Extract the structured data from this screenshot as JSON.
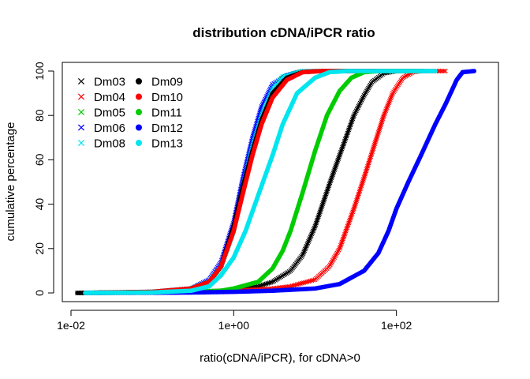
{
  "chart_data": {
    "type": "scatter",
    "title": "distribution cDNA/iPCR ratio",
    "xlabel": "ratio(cDNA/iPCR), for cDNA>0",
    "ylabel": "cumulative percentage",
    "x_scale": "log10",
    "xlim": [
      0.01,
      1200
    ],
    "ylim": [
      0,
      100
    ],
    "x_ticks": [
      {
        "value": 0.01,
        "label": "1e-02"
      },
      {
        "value": 1,
        "label": "1e+00"
      },
      {
        "value": 100,
        "label": "1e+02"
      }
    ],
    "y_ticks": [
      0,
      20,
      40,
      60,
      80,
      100
    ],
    "grid": false,
    "legend_position": "top-left",
    "series": [
      {
        "name": "Dm03",
        "marker": "x",
        "color": "#000000",
        "points": [
          [
            0.012,
            0
          ],
          [
            0.1,
            0.2
          ],
          [
            0.3,
            0.5
          ],
          [
            0.7,
            1
          ],
          [
            1.0,
            1.5
          ],
          [
            2.0,
            3
          ],
          [
            3.0,
            5
          ],
          [
            5.0,
            10
          ],
          [
            7.0,
            17
          ],
          [
            10,
            30
          ],
          [
            15,
            49
          ],
          [
            20,
            62
          ],
          [
            30,
            80
          ],
          [
            40,
            89
          ],
          [
            50,
            95
          ],
          [
            70,
            99
          ],
          [
            100,
            100
          ],
          [
            180,
            100
          ]
        ]
      },
      {
        "name": "Dm04",
        "marker": "x",
        "color": "#ff0000",
        "points": [
          [
            0.015,
            0
          ],
          [
            0.1,
            0.1
          ],
          [
            0.3,
            0.3
          ],
          [
            1.0,
            1
          ],
          [
            3.0,
            2
          ],
          [
            5.0,
            3
          ],
          [
            10,
            6
          ],
          [
            15,
            12
          ],
          [
            20,
            20
          ],
          [
            30,
            38
          ],
          [
            40,
            52
          ],
          [
            55,
            68
          ],
          [
            70,
            80
          ],
          [
            90,
            90
          ],
          [
            120,
            97
          ],
          [
            160,
            99.5
          ],
          [
            200,
            100
          ],
          [
            400,
            100
          ]
        ]
      },
      {
        "name": "Dm05",
        "marker": "x",
        "color": "#00cc00",
        "points": [
          [
            0.015,
            0
          ],
          [
            0.1,
            0.5
          ],
          [
            0.3,
            2
          ],
          [
            0.5,
            5
          ],
          [
            0.7,
            12
          ],
          [
            1.0,
            28
          ],
          [
            1.3,
            48
          ],
          [
            1.7,
            65
          ],
          [
            2.2,
            80
          ],
          [
            3.0,
            92
          ],
          [
            4.0,
            97
          ],
          [
            6.0,
            99.5
          ],
          [
            10,
            100
          ],
          [
            200,
            100
          ]
        ]
      },
      {
        "name": "Dm06",
        "marker": "x",
        "color": "#0000ff",
        "points": [
          [
            0.015,
            0
          ],
          [
            0.1,
            0.5
          ],
          [
            0.3,
            2
          ],
          [
            0.5,
            6
          ],
          [
            0.7,
            14
          ],
          [
            1.0,
            32
          ],
          [
            1.3,
            52
          ],
          [
            1.7,
            70
          ],
          [
            2.2,
            84
          ],
          [
            3.0,
            94
          ],
          [
            4.5,
            98
          ],
          [
            7,
            100
          ],
          [
            200,
            100
          ]
        ]
      },
      {
        "name": "Dm08",
        "marker": "x",
        "color": "#00e5ee",
        "points": [
          [
            0.015,
            0
          ],
          [
            0.1,
            0.5
          ],
          [
            0.3,
            2
          ],
          [
            0.5,
            5
          ],
          [
            0.7,
            12
          ],
          [
            1.0,
            28
          ],
          [
            1.3,
            48
          ],
          [
            1.7,
            66
          ],
          [
            2.2,
            80
          ],
          [
            3.0,
            92
          ],
          [
            4.0,
            97.5
          ],
          [
            7,
            100
          ],
          [
            250,
            100
          ]
        ]
      },
      {
        "name": "Dm09",
        "marker": "dot",
        "color": "#000000",
        "points": [
          [
            0.012,
            0
          ],
          [
            0.1,
            0.5
          ],
          [
            0.3,
            2
          ],
          [
            0.5,
            5
          ],
          [
            0.7,
            12
          ],
          [
            1.0,
            30
          ],
          [
            1.3,
            48
          ],
          [
            1.7,
            64
          ],
          [
            2.2,
            78
          ],
          [
            3.0,
            90
          ],
          [
            4.5,
            97
          ],
          [
            7,
            99.5
          ],
          [
            12,
            100
          ],
          [
            200,
            100
          ]
        ]
      },
      {
        "name": "Dm10",
        "marker": "dot",
        "color": "#ff0000",
        "points": [
          [
            0.015,
            0
          ],
          [
            0.1,
            0.5
          ],
          [
            0.3,
            2
          ],
          [
            0.5,
            5
          ],
          [
            0.7,
            12
          ],
          [
            1.0,
            28
          ],
          [
            1.3,
            45
          ],
          [
            1.7,
            62
          ],
          [
            2.2,
            76
          ],
          [
            3.0,
            88
          ],
          [
            4.5,
            96
          ],
          [
            7,
            99.5
          ],
          [
            12,
            100
          ],
          [
            200,
            100
          ]
        ]
      },
      {
        "name": "Dm11",
        "marker": "dot",
        "color": "#00cc00",
        "points": [
          [
            0.015,
            0
          ],
          [
            0.1,
            0.2
          ],
          [
            0.3,
            0.5
          ],
          [
            0.7,
            1
          ],
          [
            1.0,
            2
          ],
          [
            2.0,
            5
          ],
          [
            3.0,
            11
          ],
          [
            4.0,
            19
          ],
          [
            5.0,
            28
          ],
          [
            7.0,
            45
          ],
          [
            10,
            64
          ],
          [
            14,
            80
          ],
          [
            20,
            91
          ],
          [
            28,
            97
          ],
          [
            40,
            99.5
          ],
          [
            60,
            100
          ],
          [
            200,
            100
          ]
        ]
      },
      {
        "name": "Dm12",
        "marker": "dot",
        "color": "#0000ff",
        "points": [
          [
            0.015,
            0
          ],
          [
            0.1,
            0.1
          ],
          [
            0.3,
            0.2
          ],
          [
            1.0,
            0.5
          ],
          [
            3.0,
            1
          ],
          [
            10,
            2
          ],
          [
            20,
            4
          ],
          [
            40,
            10
          ],
          [
            60,
            18
          ],
          [
            80,
            28
          ],
          [
            100,
            38
          ],
          [
            140,
            50
          ],
          [
            200,
            62
          ],
          [
            300,
            76
          ],
          [
            400,
            85
          ],
          [
            550,
            96
          ],
          [
            650,
            99.5
          ],
          [
            900,
            100
          ]
        ]
      },
      {
        "name": "Dm13",
        "marker": "dot",
        "color": "#00e5ee",
        "points": [
          [
            0.015,
            0
          ],
          [
            0.1,
            0.2
          ],
          [
            0.3,
            1
          ],
          [
            0.5,
            3
          ],
          [
            0.7,
            8
          ],
          [
            1.0,
            16
          ],
          [
            1.4,
            28
          ],
          [
            2.0,
            44
          ],
          [
            3.0,
            62
          ],
          [
            4.0,
            76
          ],
          [
            6.0,
            90
          ],
          [
            10,
            97
          ],
          [
            15,
            99.5
          ],
          [
            25,
            100
          ],
          [
            300,
            100
          ]
        ]
      }
    ]
  }
}
